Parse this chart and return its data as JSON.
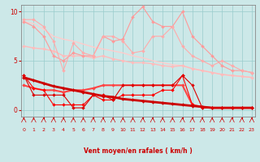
{
  "x": [
    0,
    1,
    2,
    3,
    4,
    5,
    6,
    7,
    8,
    9,
    10,
    11,
    12,
    13,
    14,
    15,
    16,
    17,
    18,
    19,
    20,
    21,
    22,
    23
  ],
  "lines": [
    {
      "y": [
        9.0,
        8.8,
        8.2,
        7.5,
        7.2,
        7.0,
        6.7,
        6.4,
        6.2,
        6.0,
        5.8,
        5.5,
        5.3,
        5.0,
        4.8,
        4.6,
        4.5,
        4.2,
        4.0,
        3.8,
        3.6,
        3.5,
        3.4,
        3.3
      ],
      "color": "#ffcccc",
      "linewidth": 1.0,
      "marker": null,
      "markersize": 0
    },
    {
      "y": [
        6.5,
        6.3,
        6.2,
        6.0,
        5.5,
        5.5,
        5.5,
        5.3,
        5.5,
        5.2,
        5.0,
        4.8,
        4.8,
        4.7,
        4.5,
        4.4,
        4.5,
        4.2,
        4.0,
        3.8,
        3.6,
        3.5,
        3.4,
        3.3
      ],
      "color": "#ffbbbb",
      "linewidth": 1.0,
      "marker": "D",
      "markersize": 2.0
    },
    {
      "y": [
        9.0,
        8.5,
        7.5,
        5.5,
        5.0,
        5.8,
        5.5,
        5.5,
        7.5,
        7.0,
        7.2,
        9.5,
        10.5,
        9.0,
        8.5,
        8.5,
        10.0,
        7.5,
        6.5,
        5.5,
        4.5,
        4.0,
        4.0,
        3.8
      ],
      "color": "#ff9999",
      "linewidth": 0.8,
      "marker": "D",
      "markersize": 2.0
    },
    {
      "y": [
        9.2,
        9.2,
        8.5,
        7.0,
        4.0,
        6.8,
        5.8,
        5.5,
        7.5,
        7.5,
        7.0,
        5.8,
        6.0,
        7.5,
        7.5,
        8.5,
        6.5,
        5.5,
        5.0,
        4.5,
        5.0,
        4.5,
        4.0,
        3.8
      ],
      "color": "#ffaaaa",
      "linewidth": 0.8,
      "marker": "D",
      "markersize": 2.0
    },
    {
      "y": [
        2.5,
        2.2,
        2.0,
        2.0,
        1.8,
        2.0,
        2.0,
        2.2,
        2.5,
        2.5,
        2.5,
        2.5,
        2.5,
        2.5,
        2.5,
        2.5,
        2.5,
        0.5,
        0.3,
        0.2,
        0.2,
        0.2,
        0.2,
        0.2
      ],
      "color": "#ff4444",
      "linewidth": 1.5,
      "marker": "D",
      "markersize": 2.0
    },
    {
      "y": [
        3.5,
        2.2,
        2.0,
        0.5,
        0.5,
        0.5,
        0.5,
        1.5,
        1.0,
        1.0,
        1.5,
        1.5,
        1.5,
        1.5,
        2.0,
        2.0,
        3.5,
        0.5,
        0.2,
        0.2,
        0.2,
        0.2,
        0.2,
        0.2
      ],
      "color": "#ff0000",
      "linewidth": 0.8,
      "marker": "D",
      "markersize": 2.0
    },
    {
      "y": [
        3.3,
        3.0,
        2.7,
        2.4,
        2.2,
        2.0,
        1.8,
        1.6,
        1.4,
        1.3,
        1.1,
        1.0,
        0.9,
        0.8,
        0.7,
        0.6,
        0.5,
        0.4,
        0.3,
        0.2,
        0.2,
        0.2,
        0.2,
        0.2
      ],
      "color": "#cc0000",
      "linewidth": 2.0,
      "marker": "D",
      "markersize": 2.0
    },
    {
      "y": [
        3.5,
        1.5,
        1.5,
        1.5,
        1.5,
        0.2,
        0.2,
        1.5,
        1.5,
        1.0,
        2.5,
        2.5,
        2.5,
        2.5,
        2.5,
        2.5,
        3.5,
        2.5,
        0.2,
        0.2,
        0.2,
        0.2,
        0.2,
        0.2
      ],
      "color": "#dd0000",
      "linewidth": 0.8,
      "marker": "D",
      "markersize": 2.0
    }
  ],
  "xlabel": "Vent moyen/en rafales ( km/h )",
  "xlim": [
    -0.3,
    23.3
  ],
  "ylim": [
    -0.7,
    10.7
  ],
  "yticks": [
    0,
    5,
    10
  ],
  "xticks": [
    0,
    1,
    2,
    3,
    4,
    5,
    6,
    7,
    8,
    9,
    10,
    11,
    12,
    13,
    14,
    15,
    16,
    17,
    18,
    19,
    20,
    21,
    22,
    23
  ],
  "background_color": "#cce8e8",
  "grid_color": "#99cccc",
  "xlabel_color": "#cc0000",
  "tick_color": "#cc0000",
  "spine_color": "#888888",
  "figsize": [
    3.2,
    2.0
  ],
  "dpi": 100
}
